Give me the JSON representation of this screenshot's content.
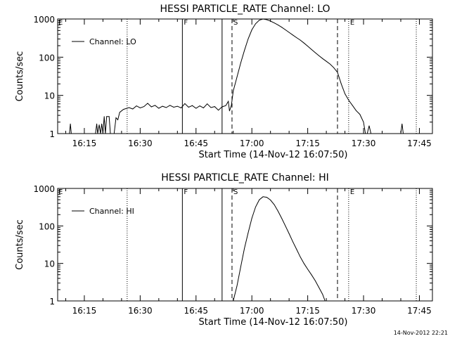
{
  "footer": {
    "timestamp": "14-Nov-2012 22:21"
  },
  "chart_data": [
    {
      "type": "line",
      "title": "HESSI PARTICLE_RATE Channel: LO",
      "xlabel": "Start Time (14-Nov-12 16:07:50)",
      "ylabel": "Counts/sec",
      "y_scale": "log",
      "ylim": [
        1,
        1000
      ],
      "y_ticks": [
        1,
        10,
        100,
        1000
      ],
      "y_tick_labels": [
        "1",
        "10",
        "100",
        "1000"
      ],
      "xlim": [
        "16:07:50",
        "17:48:30"
      ],
      "x_ticks": [
        "16:15",
        "16:30",
        "16:45",
        "17:00",
        "17:15",
        "17:30",
        "17:45"
      ],
      "grid": false,
      "legend_position": "top-left",
      "series": [
        {
          "name": "Channel: LO",
          "points": [
            [
              "16:11:00",
              1.0
            ],
            [
              "16:11:15",
              1.8
            ],
            [
              "16:11:30",
              1.0
            ],
            [
              "16:18:00",
              1.0
            ],
            [
              "16:18:20",
              1.8
            ],
            [
              "16:18:35",
              1.0
            ],
            [
              "16:19:00",
              1.7
            ],
            [
              "16:19:20",
              1.0
            ],
            [
              "16:19:40",
              1.8
            ],
            [
              "16:20:00",
              1.0
            ],
            [
              "16:20:20",
              2.8
            ],
            [
              "16:20:40",
              1.0
            ],
            [
              "16:21:00",
              2.8
            ],
            [
              "16:21:40",
              2.8
            ],
            [
              "16:22:00",
              1.0
            ],
            [
              "16:23:00",
              1.0
            ],
            [
              "16:23:30",
              2.6
            ],
            [
              "16:24:00",
              2.3
            ],
            [
              "16:24:30",
              3.6
            ],
            [
              "16:25:30",
              4.3
            ],
            [
              "16:27:00",
              4.8
            ],
            [
              "16:28:00",
              4.4
            ],
            [
              "16:29:00",
              5.3
            ],
            [
              "16:30:00",
              4.7
            ],
            [
              "16:31:00",
              5.1
            ],
            [
              "16:32:00",
              6.2
            ],
            [
              "16:33:00",
              5.0
            ],
            [
              "16:34:00",
              5.5
            ],
            [
              "16:35:00",
              4.6
            ],
            [
              "16:36:00",
              5.2
            ],
            [
              "16:37:00",
              4.8
            ],
            [
              "16:38:00",
              5.5
            ],
            [
              "16:39:00",
              4.9
            ],
            [
              "16:40:00",
              5.2
            ],
            [
              "16:41:00",
              4.7
            ],
            [
              "16:42:00",
              6.1
            ],
            [
              "16:43:00",
              4.9
            ],
            [
              "16:44:00",
              5.4
            ],
            [
              "16:45:00",
              4.6
            ],
            [
              "16:46:00",
              5.3
            ],
            [
              "16:47:00",
              4.7
            ],
            [
              "16:48:00",
              6.0
            ],
            [
              "16:49:00",
              4.8
            ],
            [
              "16:50:00",
              5.1
            ],
            [
              "16:51:00",
              4.1
            ],
            [
              "16:52:00",
              5.0
            ],
            [
              "16:53:00",
              5.4
            ],
            [
              "16:53:40",
              7.0
            ],
            [
              "16:54:00",
              3.9
            ],
            [
              "16:54:30",
              5.5
            ],
            [
              "16:55:00",
              13
            ],
            [
              "16:56:00",
              30
            ],
            [
              "16:57:00",
              70
            ],
            [
              "16:58:00",
              150
            ],
            [
              "16:59:00",
              300
            ],
            [
              "17:00:00",
              520
            ],
            [
              "17:01:00",
              750
            ],
            [
              "17:02:00",
              930
            ],
            [
              "17:03:00",
              1000
            ],
            [
              "17:04:00",
              960
            ],
            [
              "17:05:00",
              880
            ],
            [
              "17:06:00",
              790
            ],
            [
              "17:07:00",
              700
            ],
            [
              "17:08:00",
              610
            ],
            [
              "17:09:00",
              520
            ],
            [
              "17:10:00",
              445
            ],
            [
              "17:11:00",
              380
            ],
            [
              "17:12:00",
              325
            ],
            [
              "17:13:00",
              280
            ],
            [
              "17:14:00",
              235
            ],
            [
              "17:15:00",
              195
            ],
            [
              "17:16:00",
              160
            ],
            [
              "17:17:00",
              132
            ],
            [
              "17:18:00",
              110
            ],
            [
              "17:19:00",
              92
            ],
            [
              "17:20:00",
              78
            ],
            [
              "17:21:00",
              66
            ],
            [
              "17:22:00",
              53
            ],
            [
              "17:23:00",
              40
            ],
            [
              "17:24:00",
              20
            ],
            [
              "17:25:00",
              11
            ],
            [
              "17:26:00",
              7.5
            ],
            [
              "17:27:00",
              5.5
            ],
            [
              "17:28:00",
              4.0
            ],
            [
              "17:29:00",
              3.2
            ],
            [
              "17:30:00",
              2.0
            ],
            [
              "17:30:30",
              1.0
            ],
            [
              "17:31:00",
              1.0
            ],
            [
              "17:31:30",
              1.6
            ],
            [
              "17:32:00",
              1.0
            ],
            [
              "17:40:00",
              1.0
            ],
            [
              "17:40:20",
              1.8
            ],
            [
              "17:40:40",
              1.0
            ]
          ]
        }
      ]
    },
    {
      "type": "line",
      "title": "HESSI PARTICLE_RATE Channel: HI",
      "xlabel": "Start Time (14-Nov-12 16:07:50)",
      "ylabel": "Counts/sec",
      "y_scale": "log",
      "ylim": [
        1,
        1000
      ],
      "y_ticks": [
        1,
        10,
        100,
        1000
      ],
      "y_tick_labels": [
        "1",
        "10",
        "100",
        "1000"
      ],
      "xlim": [
        "16:07:50",
        "17:48:30"
      ],
      "x_ticks": [
        "16:15",
        "16:30",
        "16:45",
        "17:00",
        "17:15",
        "17:30",
        "17:45"
      ],
      "grid": false,
      "legend_position": "top-left",
      "series": [
        {
          "name": "Channel: HI",
          "points": [
            [
              "16:55:00",
              1.0
            ],
            [
              "16:56:00",
              2.5
            ],
            [
              "16:57:00",
              8
            ],
            [
              "16:58:00",
              25
            ],
            [
              "16:59:00",
              65
            ],
            [
              "17:00:00",
              160
            ],
            [
              "17:01:00",
              320
            ],
            [
              "17:02:00",
              500
            ],
            [
              "17:03:00",
              600
            ],
            [
              "17:04:00",
              580
            ],
            [
              "17:05:00",
              490
            ],
            [
              "17:06:00",
              370
            ],
            [
              "17:07:00",
              250
            ],
            [
              "17:08:00",
              160
            ],
            [
              "17:09:00",
              100
            ],
            [
              "17:10:00",
              62
            ],
            [
              "17:11:00",
              38
            ],
            [
              "17:12:00",
              24
            ],
            [
              "17:13:00",
              15
            ],
            [
              "17:14:00",
              10
            ],
            [
              "17:15:00",
              7
            ],
            [
              "17:16:00",
              5
            ],
            [
              "17:17:00",
              3.5
            ],
            [
              "17:18:00",
              2.3
            ],
            [
              "17:19:00",
              1.5
            ],
            [
              "17:19:40",
              1.0
            ]
          ]
        }
      ]
    }
  ],
  "markers": [
    {
      "label": "",
      "time": "16:26:30",
      "style": "dotted"
    },
    {
      "label": "F",
      "time": "16:41:20",
      "style": "solid"
    },
    {
      "label": "",
      "time": "16:52:00",
      "style": "solid"
    },
    {
      "label": "S",
      "time": "16:54:40",
      "style": "dashed"
    },
    {
      "label": "",
      "time": "17:23:00",
      "style": "dashed"
    },
    {
      "label": "E",
      "time": "17:26:00",
      "style": "dotted"
    },
    {
      "label": "",
      "time": "17:44:10",
      "style": "dotted"
    }
  ],
  "corner_marker": "E"
}
